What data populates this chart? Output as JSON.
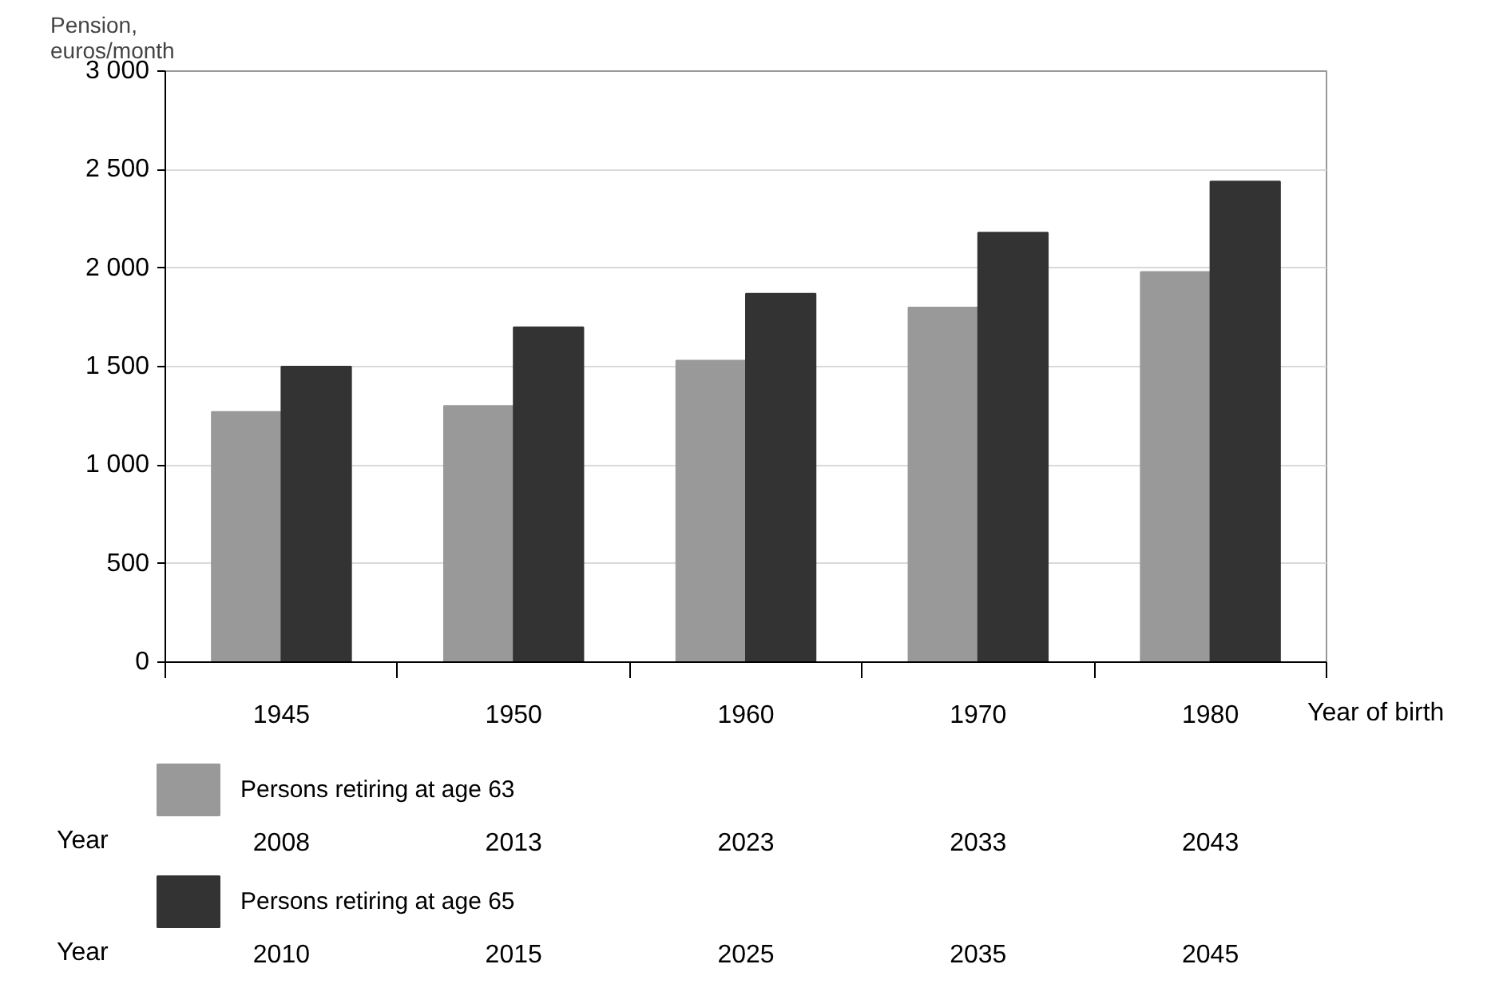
{
  "chart_data": {
    "type": "bar",
    "ylabel": "Pension,\neuros/month",
    "xlabel": "Year of birth",
    "categories": [
      "1945",
      "1950",
      "1960",
      "1970",
      "1980"
    ],
    "series": [
      {
        "name": "Persons retiring at age 63",
        "color": "#999999",
        "values": [
          1270,
          1300,
          1530,
          1800,
          1980
        ]
      },
      {
        "name": "Persons retiring at age 65",
        "color": "#333333",
        "values": [
          1500,
          1700,
          1870,
          2180,
          2440
        ]
      }
    ],
    "ylim": [
      0,
      3000
    ],
    "yticks": [
      0,
      500,
      {
        "value": 1000,
        "label": "1 000"
      },
      {
        "value": 1500,
        "label": "1 500"
      },
      {
        "value": 2000,
        "label": "2 000"
      },
      {
        "value": 2500,
        "label": "2 500"
      },
      {
        "value": 3000,
        "label": "3 000"
      }
    ],
    "grid": "y",
    "legend": "bottom",
    "annotations": [
      "Year",
      "2008",
      "2013",
      "2023",
      "2033",
      "2043",
      "Year",
      "2010",
      "2015",
      "2025",
      "2035",
      "2045"
    ]
  }
}
